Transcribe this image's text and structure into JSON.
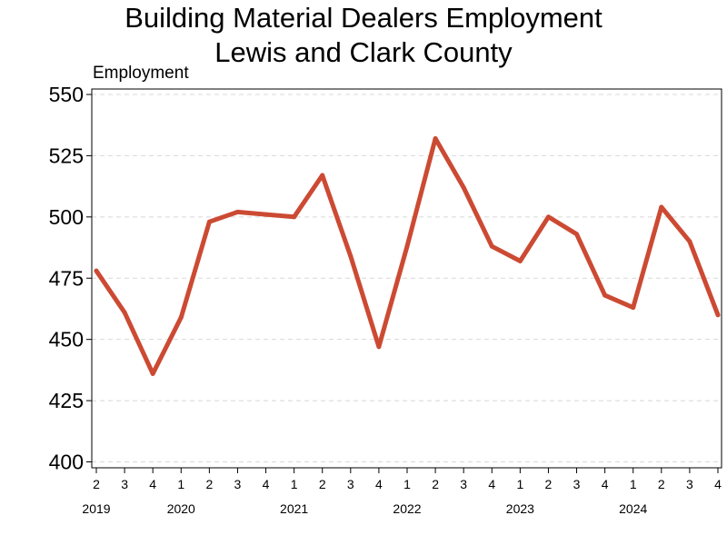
{
  "chart_data": {
    "type": "line",
    "title_line1": "Building Material Dealers Employment",
    "title_line2": "Lewis and Clark County",
    "ylabel": "Employment",
    "xlabel": "",
    "ylim": [
      400,
      550
    ],
    "yticks": [
      400,
      425,
      450,
      475,
      500,
      525,
      550
    ],
    "grid": "horizontal-dashed",
    "legend": "none",
    "line_color": "#cc4a33",
    "x_quarter_labels": [
      "2",
      "3",
      "4",
      "1",
      "2",
      "3",
      "4",
      "1",
      "2",
      "3",
      "4",
      "1",
      "2",
      "3",
      "4",
      "1",
      "2",
      "3",
      "4",
      "1",
      "2",
      "3",
      "4"
    ],
    "years": [
      {
        "label": "2019",
        "index": 0
      },
      {
        "label": "2020",
        "index": 3
      },
      {
        "label": "2021",
        "index": 7
      },
      {
        "label": "2022",
        "index": 11
      },
      {
        "label": "2023",
        "index": 15
      },
      {
        "label": "2024",
        "index": 19
      }
    ],
    "series": [
      {
        "values": [
          478,
          461,
          436,
          459,
          498,
          502,
          501,
          500,
          517,
          484,
          447,
          488,
          532,
          512,
          488,
          482,
          500,
          493,
          468,
          463,
          504,
          490,
          460
        ]
      }
    ]
  }
}
